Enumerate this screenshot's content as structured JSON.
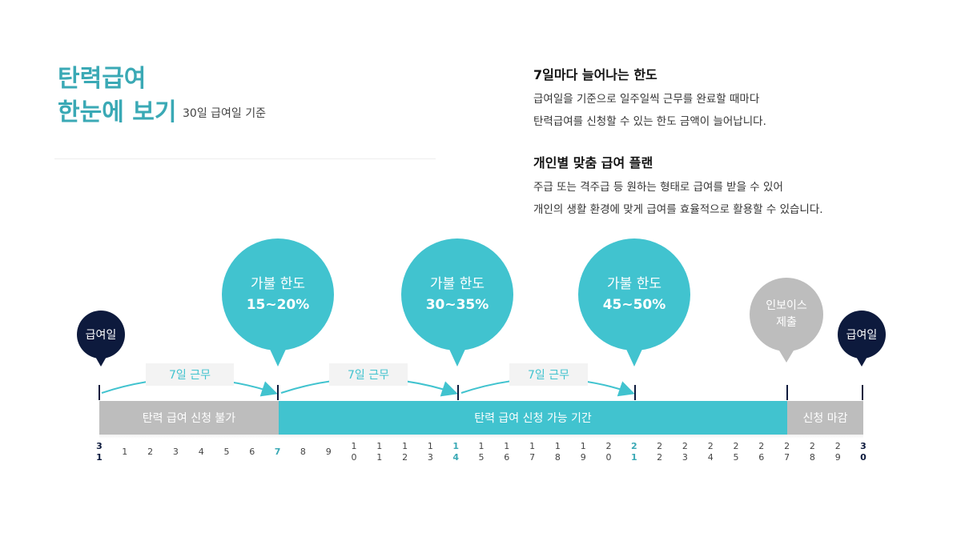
{
  "header": {
    "title_line1": "탄력급여",
    "title_line2": "한눈에 보기",
    "subtitle": "30일 급여일 기준"
  },
  "info": [
    {
      "heading": "7일마다 늘어나는 한도",
      "line1": "급여일을 기준으로 일주일씩 근무를 완료할 때마다",
      "line2": "탄력급여를 신청할 수 있는 한도 금액이 늘어납니다."
    },
    {
      "heading": "개인별 맞춤 급여 플랜",
      "line1": "주급 또는 격주급 등 원하는 형태로 급여를 받을 수 있어",
      "line2": "개인의 생활 환경에 맞게 급여를 효율적으로 활용할 수 있습니다."
    }
  ],
  "markers": {
    "payday_start": "급여일",
    "payday_end": "급여일",
    "invoice_line1": "인보이스",
    "invoice_line2": "제출"
  },
  "limits": [
    {
      "label": "가불 한도",
      "value": "15~20%"
    },
    {
      "label": "가불 한도",
      "value": "30~35%"
    },
    {
      "label": "가불 한도",
      "value": "45~50%"
    }
  ],
  "work_pills": [
    "7일 근무",
    "7일 근무",
    "7일 근무"
  ],
  "bars": {
    "unavailable": "탄력 급여 신청 불가",
    "available": "탄력 급여 신청 가능 기간",
    "closed": "신청 마감"
  },
  "days": [
    [
      "3",
      "1"
    ],
    [
      "1",
      ""
    ],
    [
      "2",
      ""
    ],
    [
      "3",
      ""
    ],
    [
      "4",
      ""
    ],
    [
      "5",
      ""
    ],
    [
      "6",
      ""
    ],
    [
      "7",
      ""
    ],
    [
      "8",
      ""
    ],
    [
      "9",
      ""
    ],
    [
      "1",
      "0"
    ],
    [
      "1",
      "1"
    ],
    [
      "1",
      "2"
    ],
    [
      "1",
      "3"
    ],
    [
      "1",
      "4"
    ],
    [
      "1",
      "5"
    ],
    [
      "1",
      "6"
    ],
    [
      "1",
      "7"
    ],
    [
      "1",
      "8"
    ],
    [
      "1",
      "9"
    ],
    [
      "2",
      "0"
    ],
    [
      "2",
      "1"
    ],
    [
      "2",
      "2"
    ],
    [
      "2",
      "3"
    ],
    [
      "2",
      "4"
    ],
    [
      "2",
      "5"
    ],
    [
      "2",
      "6"
    ],
    [
      "2",
      "7"
    ],
    [
      "2",
      "8"
    ],
    [
      "2",
      "9"
    ],
    [
      "3",
      "0"
    ]
  ]
}
